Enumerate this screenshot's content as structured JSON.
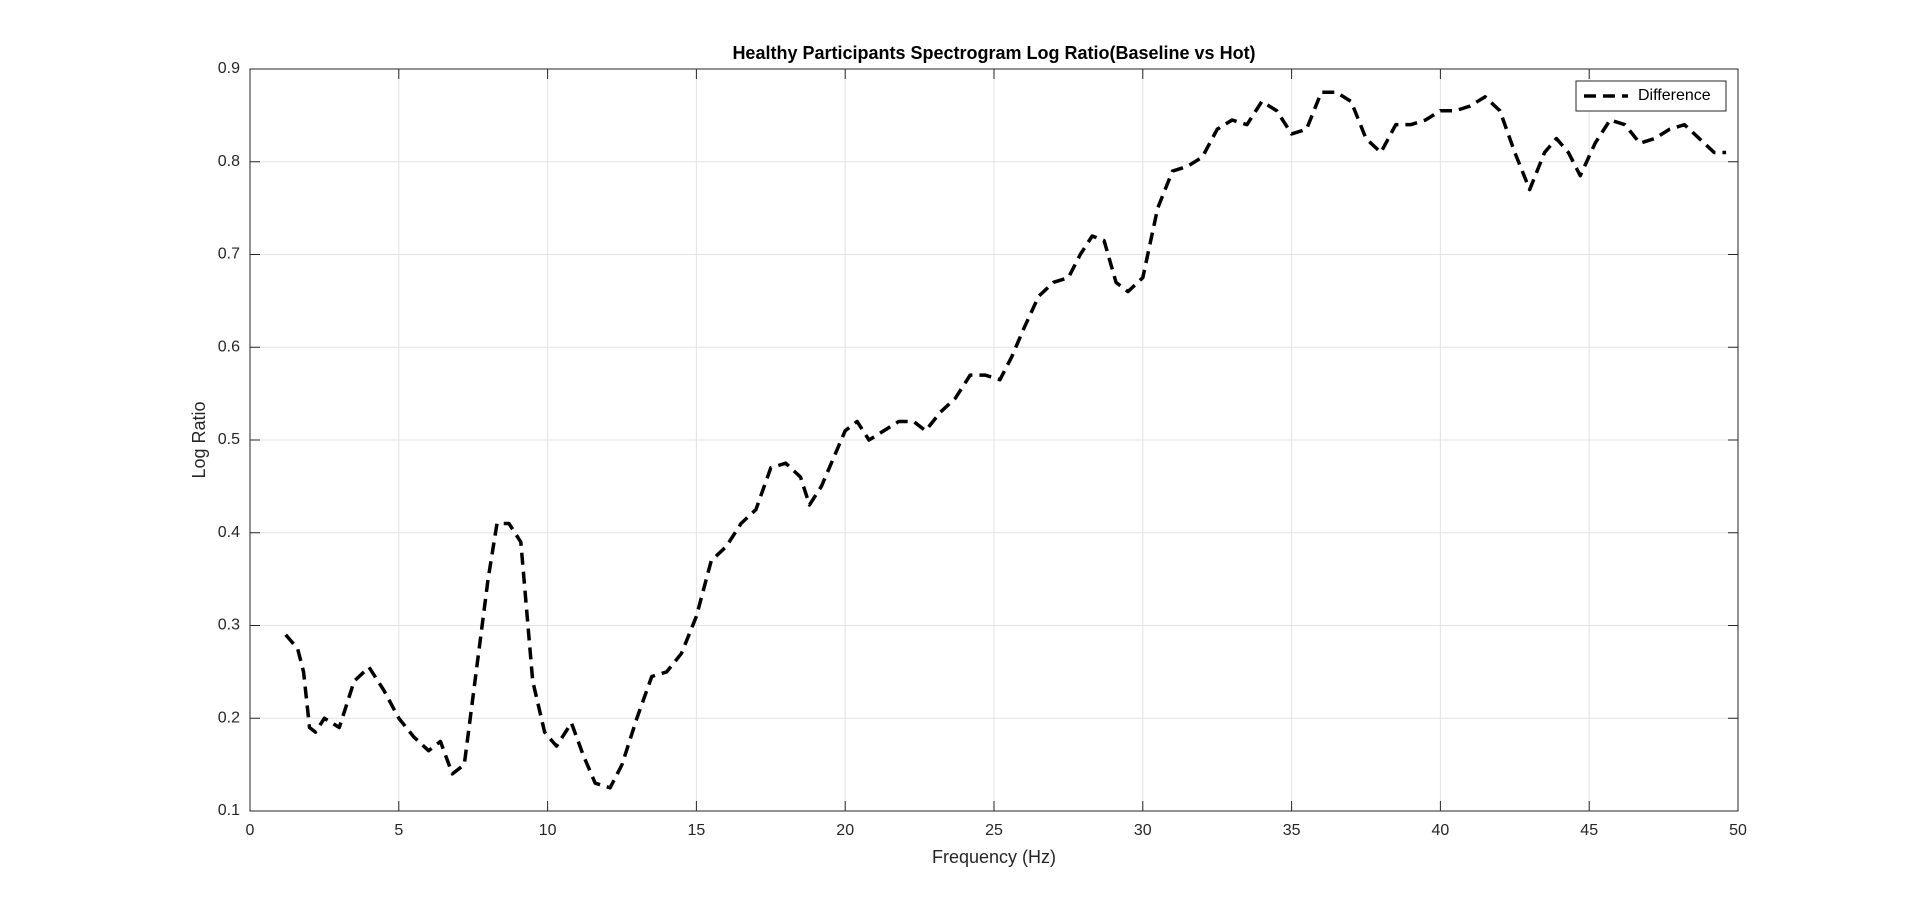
{
  "chart_data": {
    "type": "line",
    "title": "Healthy Participants Spectrogram Log Ratio(Baseline vs Hot)",
    "x_label": "Frequency (Hz)",
    "y_label": "Log Ratio",
    "x": [
      1.2,
      1.6,
      1.8,
      2.0,
      2.2,
      2.5,
      3.0,
      3.5,
      4.0,
      4.5,
      5.0,
      5.5,
      6.0,
      6.4,
      6.8,
      7.2,
      7.6,
      8.0,
      8.3,
      8.7,
      9.1,
      9.5,
      9.9,
      10.3,
      10.8,
      11.2,
      11.6,
      12.1,
      12.5,
      13.0,
      13.5,
      14.0,
      14.5,
      15.0,
      15.5,
      16.0,
      16.5,
      17.0,
      17.5,
      18.0,
      18.5,
      18.8,
      19.2,
      19.6,
      20.0,
      20.4,
      20.8,
      21.3,
      21.8,
      22.3,
      22.7,
      23.2,
      23.7,
      24.2,
      24.7,
      25.2,
      25.6,
      26.0,
      26.5,
      27.0,
      27.5,
      27.9,
      28.3,
      28.7,
      29.1,
      29.5,
      30.0,
      30.5,
      31.0,
      31.5,
      32.0,
      32.5,
      33.0,
      33.5,
      34.0,
      34.5,
      35.0,
      35.5,
      36.0,
      36.5,
      37.0,
      37.5,
      38.0,
      38.5,
      39.0,
      39.5,
      40.0,
      40.5,
      41.0,
      41.5,
      42.0,
      42.5,
      43.0,
      43.5,
      43.9,
      44.3,
      44.7,
      45.2,
      45.7,
      46.2,
      46.7,
      47.2,
      47.7,
      48.2,
      48.7,
      49.2,
      49.6
    ],
    "series": [
      {
        "name": "Difference",
        "color": "#000000",
        "line_style": "dashed",
        "values": [
          0.29,
          0.275,
          0.25,
          0.19,
          0.185,
          0.2,
          0.19,
          0.24,
          0.255,
          0.23,
          0.2,
          0.18,
          0.165,
          0.175,
          0.14,
          0.15,
          0.25,
          0.35,
          0.41,
          0.41,
          0.39,
          0.24,
          0.185,
          0.17,
          0.195,
          0.16,
          0.13,
          0.125,
          0.15,
          0.2,
          0.245,
          0.25,
          0.27,
          0.31,
          0.37,
          0.385,
          0.41,
          0.425,
          0.47,
          0.475,
          0.46,
          0.43,
          0.45,
          0.48,
          0.51,
          0.52,
          0.5,
          0.51,
          0.52,
          0.52,
          0.51,
          0.53,
          0.545,
          0.57,
          0.57,
          0.565,
          0.59,
          0.62,
          0.655,
          0.67,
          0.675,
          0.7,
          0.72,
          0.715,
          0.67,
          0.66,
          0.675,
          0.75,
          0.79,
          0.795,
          0.805,
          0.835,
          0.845,
          0.84,
          0.865,
          0.855,
          0.83,
          0.835,
          0.875,
          0.875,
          0.865,
          0.825,
          0.81,
          0.84,
          0.84,
          0.845,
          0.855,
          0.855,
          0.86,
          0.87,
          0.855,
          0.81,
          0.77,
          0.81,
          0.825,
          0.81,
          0.785,
          0.82,
          0.845,
          0.84,
          0.82,
          0.825,
          0.835,
          0.84,
          0.825,
          0.81,
          0.81
        ]
      }
    ],
    "xlim": [
      0,
      50
    ],
    "xticks": [
      0,
      5,
      10,
      15,
      20,
      25,
      30,
      35,
      40,
      45,
      50
    ],
    "ylim": [
      0.1,
      0.9
    ],
    "yticks": [
      0.1,
      0.2,
      0.3,
      0.4,
      0.5,
      0.6,
      0.7,
      0.8,
      0.9
    ],
    "grid": true,
    "legend": "northeast"
  }
}
